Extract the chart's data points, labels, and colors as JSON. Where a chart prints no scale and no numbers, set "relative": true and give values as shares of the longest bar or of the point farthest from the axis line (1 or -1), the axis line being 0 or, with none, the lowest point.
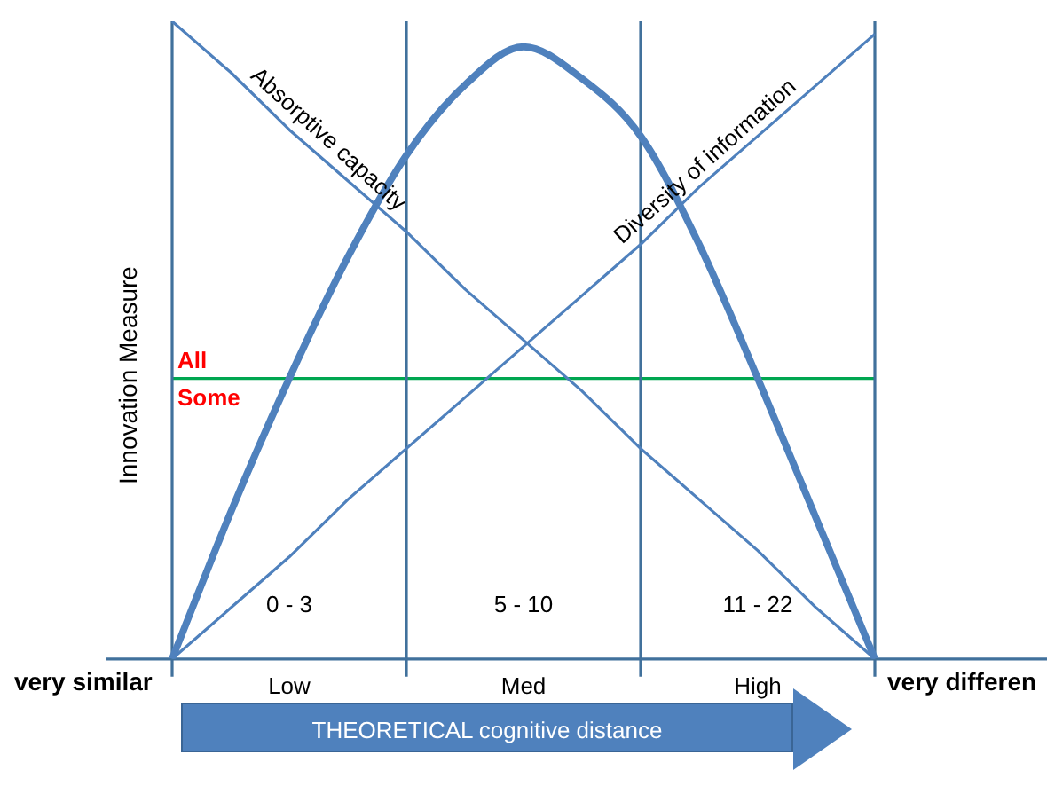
{
  "chart_data": {
    "type": "line",
    "relative": true,
    "xlabel": "THEORETICAL cognitive distance",
    "ylabel": "Innovation Measure",
    "categories": [
      null,
      null,
      "Low",
      null,
      null,
      null,
      "Med",
      null,
      null,
      null,
      "High",
      null,
      null
    ],
    "series": [
      {
        "color": "#4f81bd",
        "values": [
          0,
          0.23,
          0.44,
          0.63,
          0.79,
          0.9,
          0.96,
          0.91,
          0.82,
          0.65,
          0.44,
          0.22,
          0
        ]
      },
      {
        "name": "Absorptive capacity",
        "color": "#4f81bd",
        "values": [
          1,
          0.92,
          0.83,
          0.75,
          0.67,
          0.58,
          0.5,
          0.42,
          0.33,
          0.25,
          0.17,
          0.08,
          0
        ]
      },
      {
        "name": "Diversity of information",
        "color": "#4f81bd",
        "values": [
          0,
          0.08,
          0.16,
          0.25,
          0.33,
          0.41,
          0.49,
          0.57,
          0.65,
          0.74,
          0.82,
          0.9,
          0.98
        ]
      }
    ],
    "ref_lines": [
      {
        "axis": "y",
        "value": 0.44,
        "label": null,
        "color": "#00a650"
      }
    ],
    "annotations": [
      {
        "text": "All",
        "y": 0.44
      },
      {
        "text": "Some",
        "y": 0.44
      },
      "very similar",
      "0 - 3",
      "5 - 10",
      "11 - 22",
      "very differen"
    ],
    "grid": "x",
    "legend": false,
    "marker": "none",
    "line_style": "solid"
  }
}
